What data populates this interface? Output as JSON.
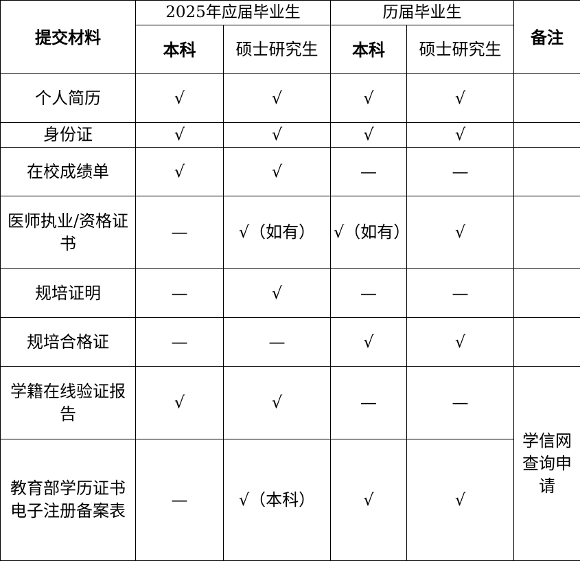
{
  "header": {
    "material": "提交材料",
    "group_2025": "2025年应届毕业生",
    "group_past": "历届毕业生",
    "remarks": "备注",
    "sub_columns": [
      "本科",
      "硕士研究生",
      "本科",
      "硕士研究生"
    ]
  },
  "rows": [
    {
      "name": "个人简历",
      "cells": [
        "√",
        "√",
        "√",
        "√"
      ]
    },
    {
      "name": "身份证",
      "cells": [
        "√",
        "√",
        "√",
        "√"
      ]
    },
    {
      "name": "在校成绩单",
      "cells": [
        "√",
        "√",
        "—",
        "—"
      ]
    },
    {
      "name": "医师执业/资格证书",
      "cells": [
        "—",
        "√（如有）",
        "√（如有）",
        "√"
      ]
    },
    {
      "name": "规培证明",
      "cells": [
        "—",
        "√",
        "—",
        "—"
      ]
    },
    {
      "name": "规培合格证",
      "cells": [
        "—",
        "—",
        "√",
        "√"
      ]
    },
    {
      "name": "学籍在线验证报告",
      "cells": [
        "√",
        "√",
        "—",
        "—"
      ]
    },
    {
      "name": "教育部学历证书电子注册备案表",
      "cells": [
        "—",
        "√（本科）",
        "√",
        "√"
      ]
    }
  ],
  "remark_merged": "学信网查询申请"
}
